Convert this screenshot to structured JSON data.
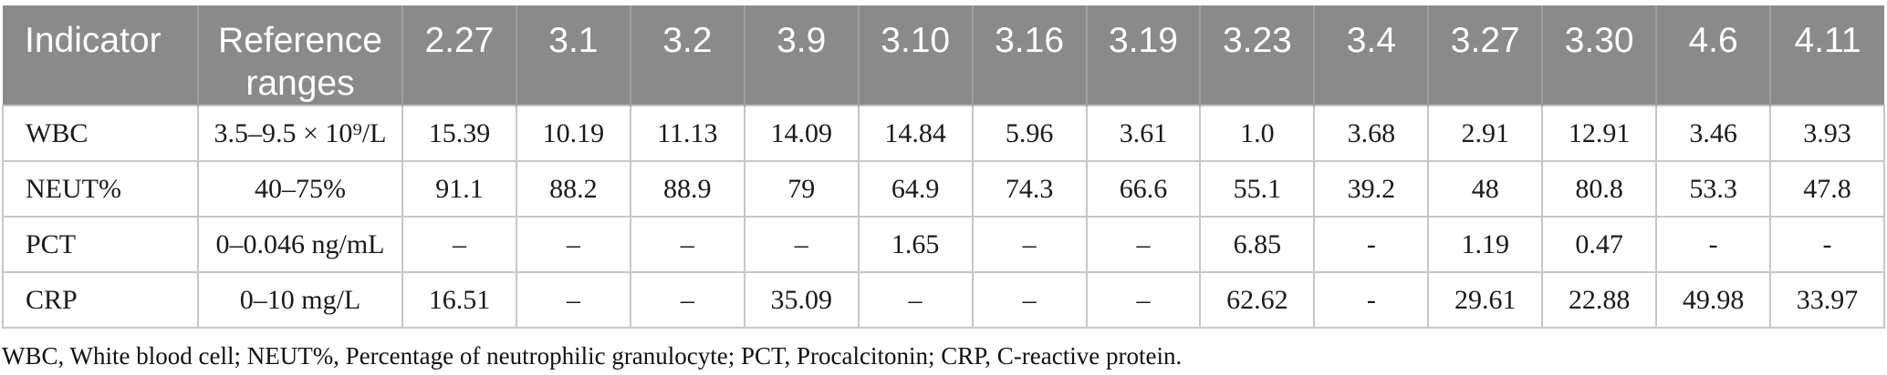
{
  "table": {
    "columns": [
      "Indicator",
      "Reference ranges",
      "2.27",
      "3.1",
      "3.2",
      "3.9",
      "3.10",
      "3.16",
      "3.19",
      "3.23",
      "3.4",
      "3.27",
      "3.30",
      "4.6",
      "4.11"
    ],
    "rows": [
      {
        "indicator": "WBC",
        "reference": "3.5–9.5 × 10⁹/L",
        "values": [
          "15.39",
          "10.19",
          "11.13",
          "14.09",
          "14.84",
          "5.96",
          "3.61",
          "1.0",
          "3.68",
          "2.91",
          "12.91",
          "3.46",
          "3.93"
        ]
      },
      {
        "indicator": "NEUT%",
        "reference": "40–75%",
        "values": [
          "91.1",
          "88.2",
          "88.9",
          "79",
          "64.9",
          "74.3",
          "66.6",
          "55.1",
          "39.2",
          "48",
          "80.8",
          "53.3",
          "47.8"
        ]
      },
      {
        "indicator": "PCT",
        "reference": "0–0.046 ng/mL",
        "values": [
          "–",
          "–",
          "–",
          "–",
          "1.65",
          "–",
          "–",
          "6.85",
          "-",
          "1.19",
          "0.47",
          "-",
          "-"
        ]
      },
      {
        "indicator": "CRP",
        "reference": "0–10 mg/L",
        "values": [
          "16.51",
          "–",
          "–",
          "35.09",
          "–",
          "–",
          "–",
          "62.62",
          "-",
          "29.61",
          "22.88",
          "49.98",
          "33.97"
        ]
      }
    ],
    "footnote": "WBC, White blood cell; NEUT%, Percentage of neutrophilic granulocyte; PCT, Procalcitonin; CRP, C-reactive protein."
  },
  "colors": {
    "header_bg": "#8a8a8a",
    "header_divider": "#9f9f9f",
    "header_text": "#ffffff",
    "body_text": "#1a1a1a",
    "border": "#c7c7c7"
  }
}
